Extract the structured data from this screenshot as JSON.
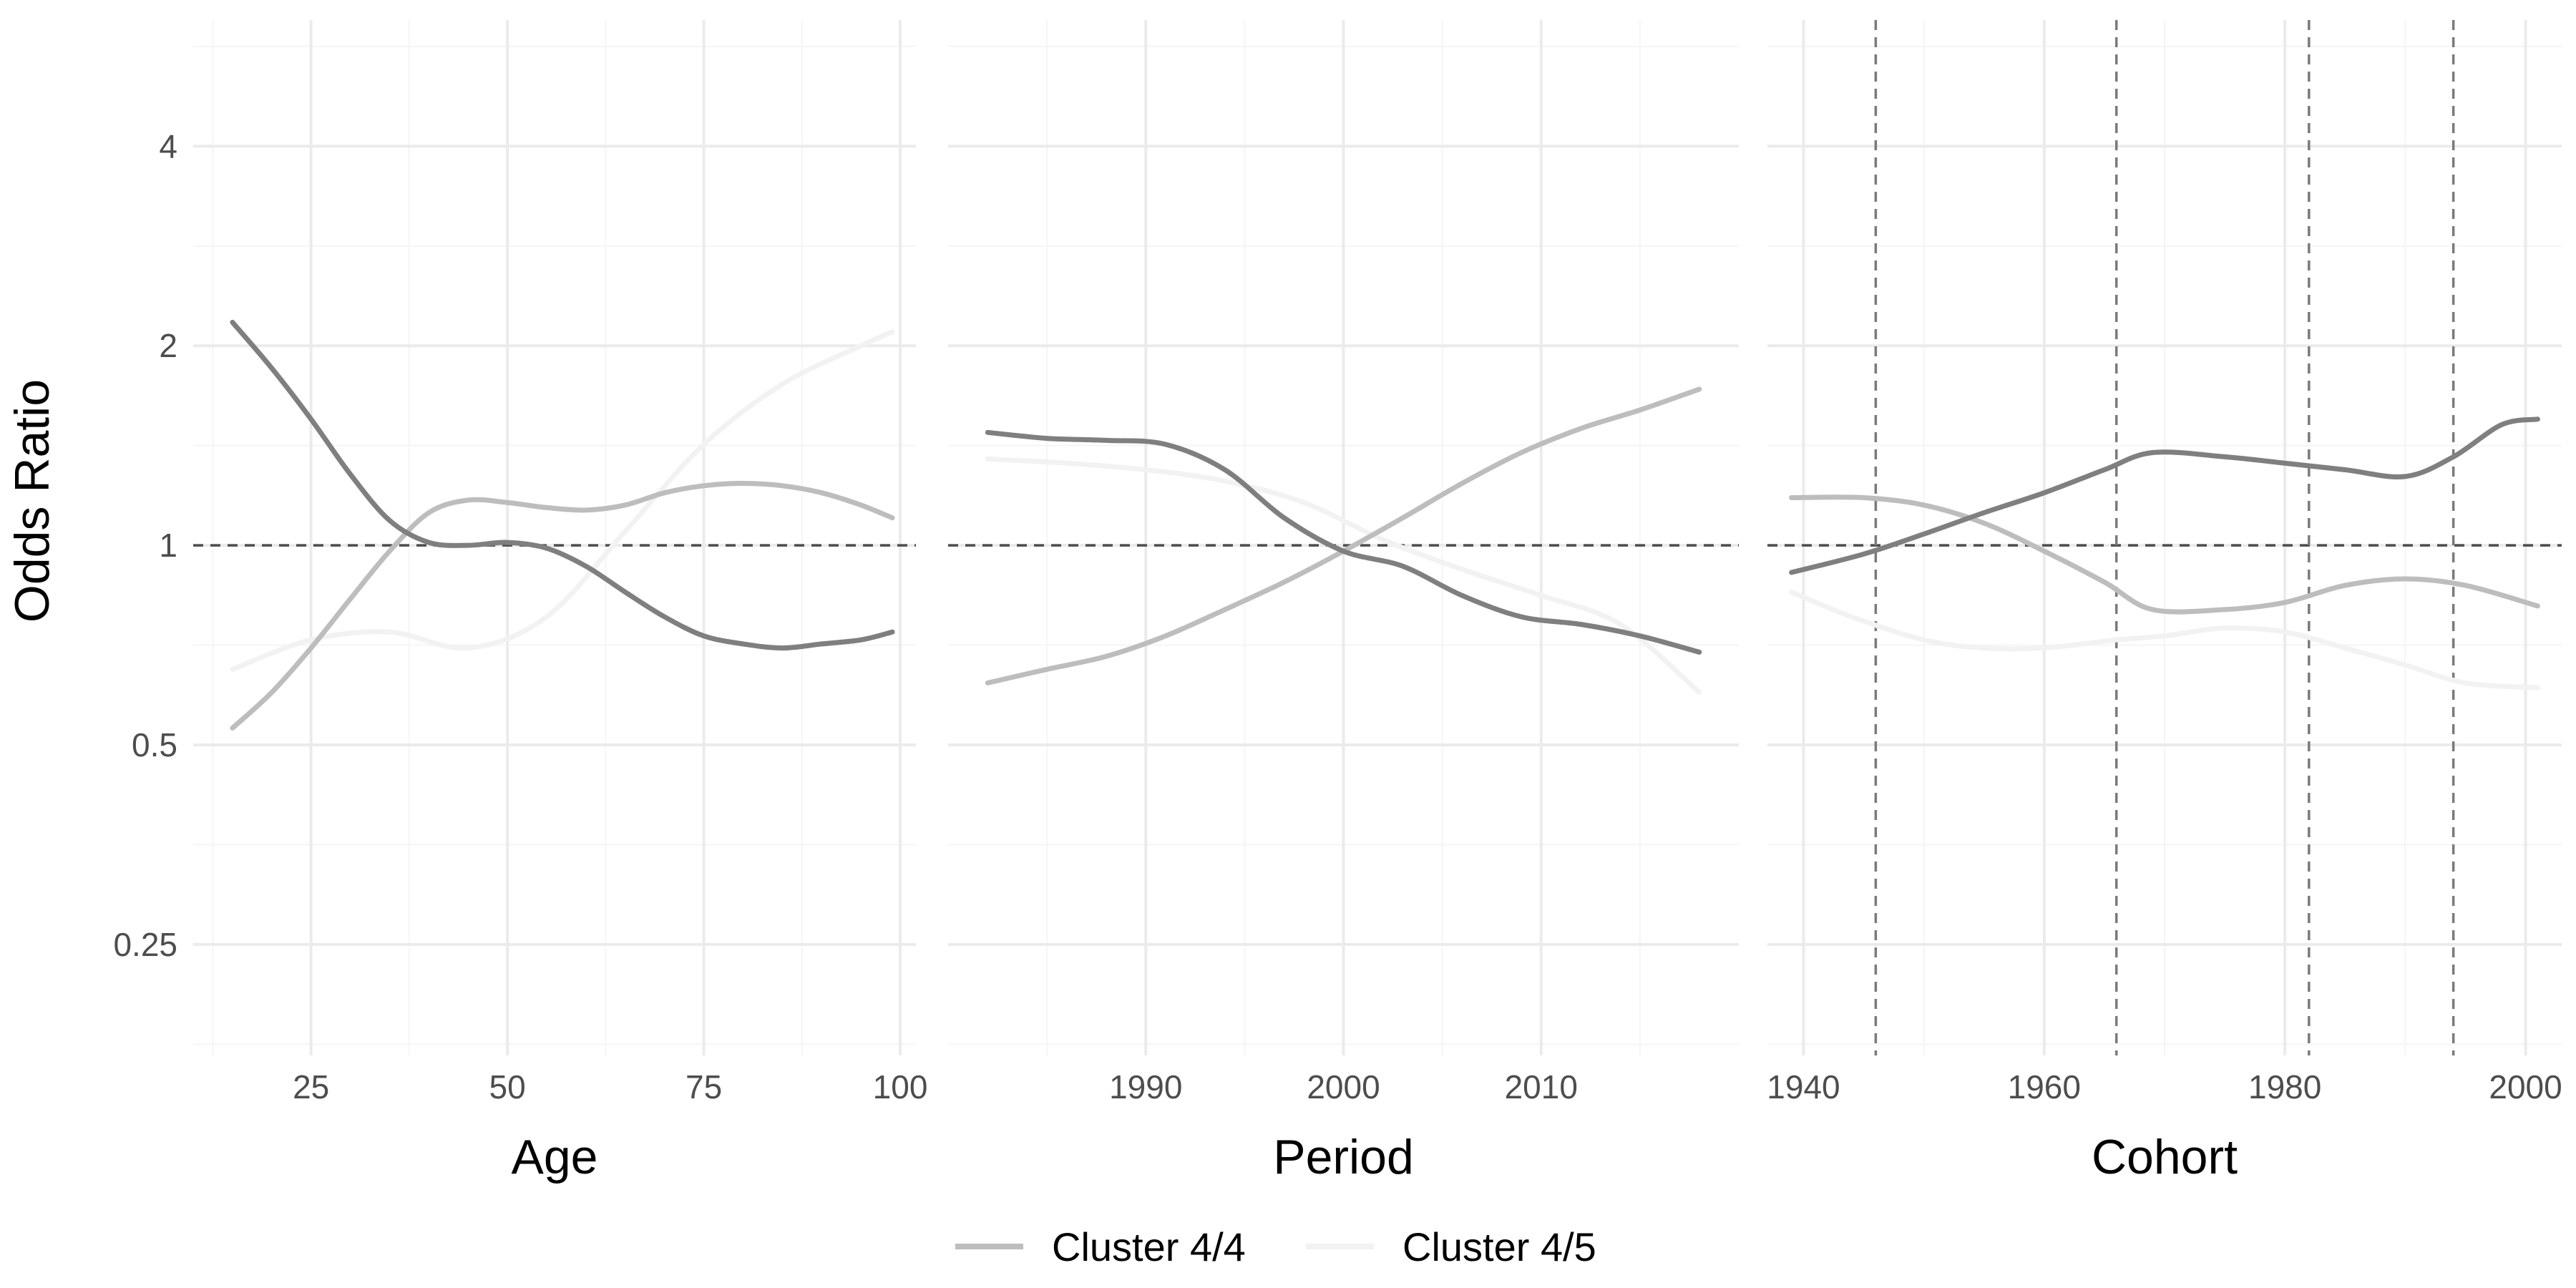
{
  "chart_data": {
    "type": "line",
    "y_axis": {
      "label": "Odds Ratio",
      "scale": "log2",
      "ticks": [
        0.25,
        0.5,
        1,
        2,
        4
      ],
      "tick_labels": [
        "0.25",
        "0.5",
        "1",
        "2",
        "4"
      ],
      "range": [
        0.17,
        6.2
      ],
      "reference_line": 1
    },
    "colors": {
      "c2": "#7f7f7f",
      "c4": "#bdbdbd",
      "c5": "#f2f2f2",
      "grid_major": "#ebebeb",
      "grid_minor": "#f5f5f5",
      "refline": "#4d4d4d"
    },
    "panels": [
      {
        "name": "Age",
        "xlabel": "Age",
        "xlim": [
          10,
          102
        ],
        "ticks": [
          25,
          50,
          75,
          100
        ],
        "tick_labels": [
          "25",
          "50",
          "75",
          "100"
        ],
        "minor_ticks": [
          12.5,
          37.5,
          62.5,
          87.5
        ],
        "vlines": [],
        "series": [
          {
            "key": "c2",
            "x": [
              15,
              20,
              25,
              30,
              35,
              40,
              45,
              50,
              55,
              60,
              65,
              70,
              75,
              80,
              85,
              90,
              95,
              99
            ],
            "y": [
              2.17,
              1.85,
              1.55,
              1.28,
              1.09,
              1.01,
              1.0,
              1.01,
              0.99,
              0.93,
              0.85,
              0.78,
              0.73,
              0.71,
              0.7,
              0.71,
              0.72,
              0.74
            ]
          },
          {
            "key": "c4",
            "x": [
              15,
              20,
              25,
              30,
              35,
              40,
              45,
              50,
              55,
              60,
              65,
              70,
              75,
              80,
              85,
              90,
              95,
              99
            ],
            "y": [
              0.53,
              0.6,
              0.7,
              0.83,
              0.98,
              1.12,
              1.17,
              1.16,
              1.14,
              1.13,
              1.15,
              1.2,
              1.23,
              1.24,
              1.23,
              1.2,
              1.15,
              1.1
            ]
          },
          {
            "key": "c5",
            "x": [
              15,
              25,
              35,
              45,
              55,
              65,
              75,
              85,
              95,
              99
            ],
            "y": [
              0.65,
              0.72,
              0.74,
              0.7,
              0.78,
              1.05,
              1.42,
              1.75,
              2.0,
              2.1
            ]
          }
        ]
      },
      {
        "name": "Period",
        "xlabel": "Period",
        "xlim": [
          1980,
          2020
        ],
        "ticks": [
          1990,
          2000,
          2010
        ],
        "tick_labels": [
          "1990",
          "2000",
          "2010"
        ],
        "minor_ticks": [
          1985,
          1995,
          2005,
          2015
        ],
        "vlines": [],
        "series": [
          {
            "key": "c2",
            "x": [
              1982,
              1985,
              1988,
              1991,
              1994,
              1997,
              2000,
              2003,
              2006,
              2009,
              2012,
              2015,
              2018
            ],
            "y": [
              1.48,
              1.45,
              1.44,
              1.42,
              1.3,
              1.1,
              0.98,
              0.93,
              0.84,
              0.78,
              0.76,
              0.73,
              0.69
            ]
          },
          {
            "key": "c4",
            "x": [
              1982,
              1985,
              1988,
              1991,
              1994,
              1997,
              2000,
              2003,
              2006,
              2009,
              2012,
              2015,
              2018
            ],
            "y": [
              0.62,
              0.65,
              0.68,
              0.73,
              0.8,
              0.88,
              0.98,
              1.1,
              1.24,
              1.38,
              1.5,
              1.6,
              1.72
            ]
          },
          {
            "key": "c5",
            "x": [
              1982,
              1986,
              1990,
              1994,
              1998,
              2002,
              2006,
              2010,
              2014,
              2018
            ],
            "y": [
              1.35,
              1.33,
              1.3,
              1.25,
              1.16,
              1.02,
              0.92,
              0.84,
              0.76,
              0.6
            ]
          }
        ]
      },
      {
        "name": "Cohort",
        "xlabel": "Cohort",
        "xlim": [
          1937,
          2003
        ],
        "ticks": [
          1940,
          1960,
          1980,
          2000
        ],
        "tick_labels": [
          "1940",
          "1960",
          "1980",
          "2000"
        ],
        "minor_ticks": [
          1950,
          1970,
          1990
        ],
        "vlines": [
          1946,
          1966,
          1982,
          1994
        ],
        "series": [
          {
            "key": "c2",
            "x": [
              1939,
              1945,
              1950,
              1955,
              1960,
              1965,
              1969,
              1975,
              1980,
              1985,
              1990,
              1994,
              1998,
              2001
            ],
            "y": [
              0.91,
              0.97,
              1.04,
              1.12,
              1.2,
              1.3,
              1.38,
              1.36,
              1.33,
              1.3,
              1.27,
              1.36,
              1.52,
              1.55
            ]
          },
          {
            "key": "c4",
            "x": [
              1939,
              1945,
              1950,
              1955,
              1960,
              1965,
              1969,
              1975,
              1980,
              1985,
              1990,
              1995,
              2001
            ],
            "y": [
              1.18,
              1.18,
              1.15,
              1.08,
              0.98,
              0.88,
              0.8,
              0.8,
              0.82,
              0.87,
              0.89,
              0.87,
              0.81
            ]
          },
          {
            "key": "c5",
            "x": [
              1939,
              1944,
              1950,
              1955,
              1960,
              1966,
              1970,
              1975,
              1980,
              1985,
              1990,
              1995,
              2001
            ],
            "y": [
              0.85,
              0.78,
              0.72,
              0.7,
              0.7,
              0.72,
              0.73,
              0.75,
              0.74,
              0.7,
              0.66,
              0.62,
              0.61
            ]
          }
        ]
      }
    ],
    "legend": {
      "position": "bottom",
      "entries": [
        {
          "key": "c4",
          "label": "Cluster 4/4"
        },
        {
          "key": "c5",
          "label": "Cluster 4/5"
        }
      ]
    },
    "grid": true
  }
}
